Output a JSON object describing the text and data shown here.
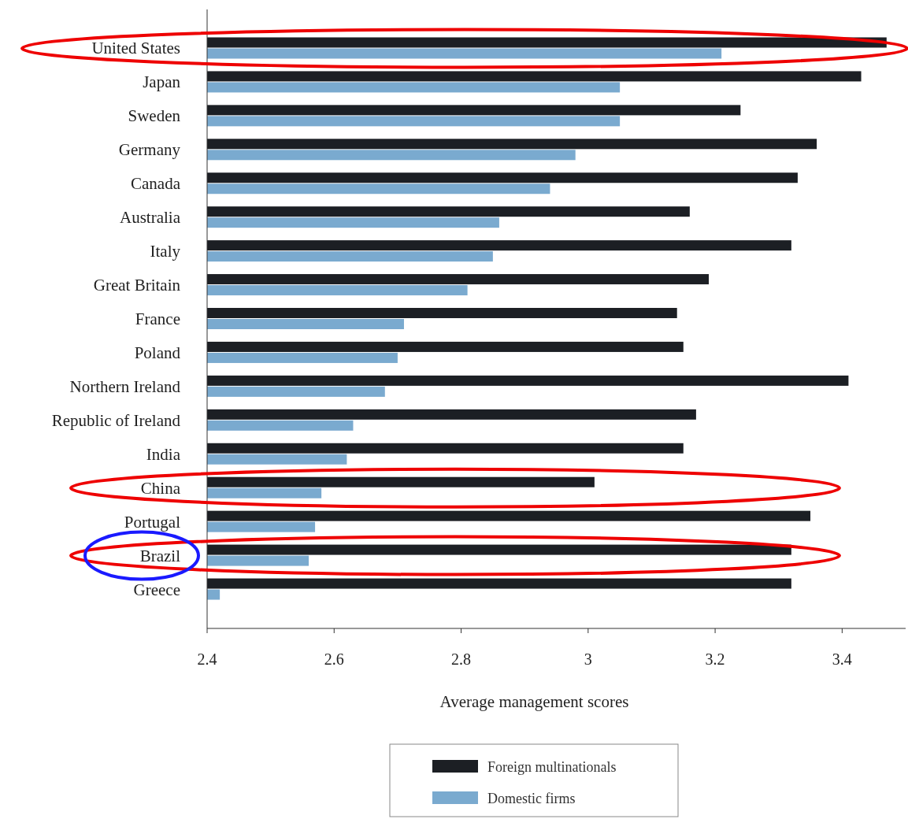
{
  "chart_data": {
    "type": "bar",
    "orientation": "horizontal",
    "xlabel": "Average management scores",
    "categories": [
      "United States",
      "Japan",
      "Sweden",
      "Germany",
      "Canada",
      "Australia",
      "Italy",
      "Great Britain",
      "France",
      "Poland",
      "Northern Ireland",
      "Republic of Ireland",
      "India",
      "China",
      "Portugal",
      "Brazil",
      "Greece"
    ],
    "series": [
      {
        "name": "Foreign multinationals",
        "color": "#1c1f24",
        "values": [
          3.47,
          3.43,
          3.24,
          3.36,
          3.33,
          3.16,
          3.32,
          3.19,
          3.14,
          3.15,
          3.41,
          3.17,
          3.15,
          3.01,
          3.35,
          3.32,
          3.32
        ]
      },
      {
        "name": "Domestic firms",
        "color": "#7aaacf",
        "values": [
          3.21,
          3.05,
          3.05,
          2.98,
          2.94,
          2.86,
          2.85,
          2.81,
          2.71,
          2.7,
          2.68,
          2.63,
          2.62,
          2.58,
          2.57,
          2.56,
          2.42
        ]
      }
    ],
    "xlim": [
      2.4,
      3.5
    ],
    "xticks": [
      2.4,
      2.6,
      2.8,
      3,
      3.2,
      3.4
    ],
    "grid": false,
    "legend": "bottom"
  }
}
